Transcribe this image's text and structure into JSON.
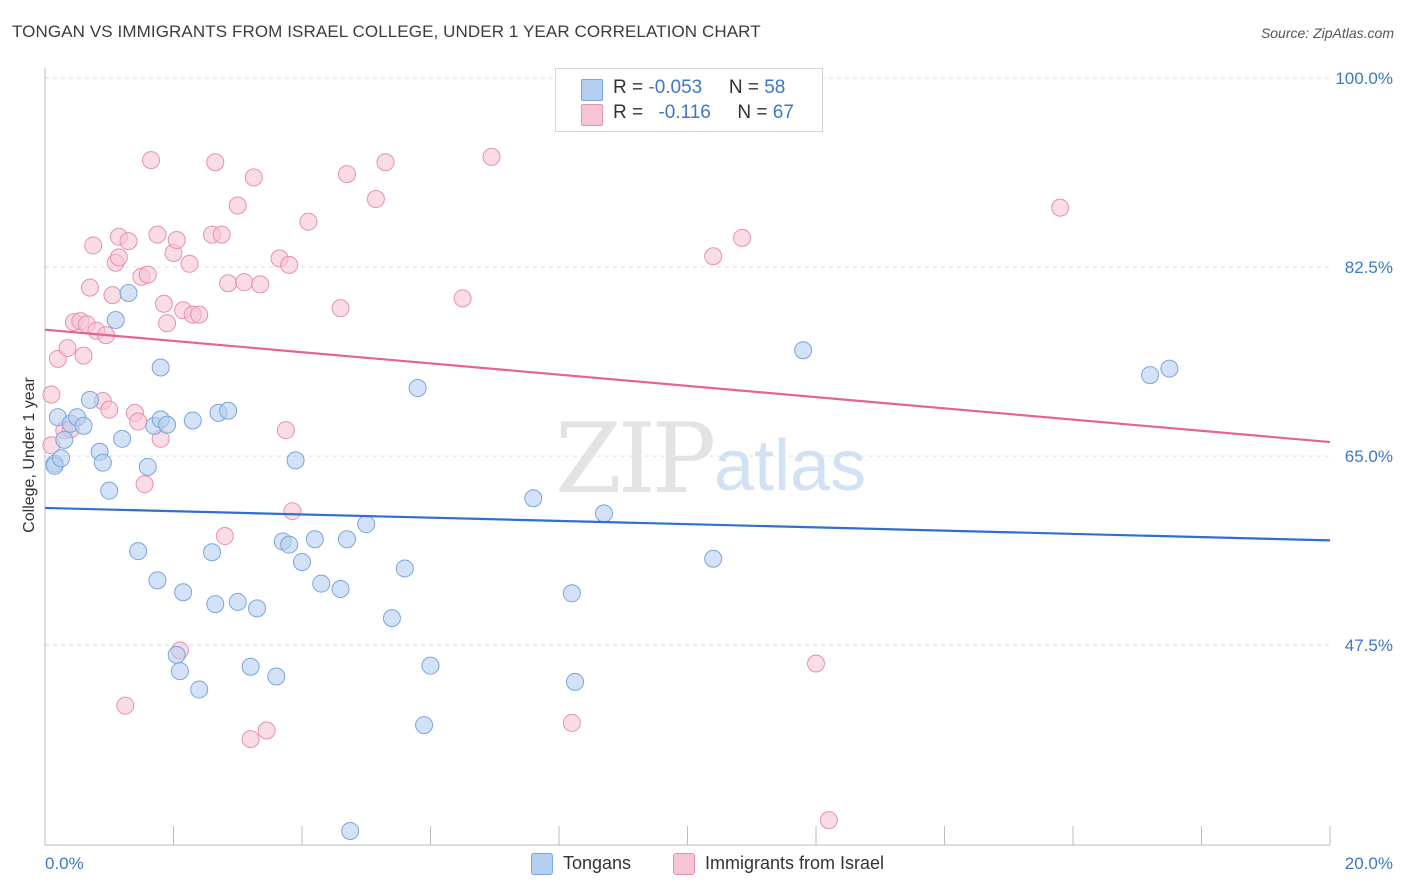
{
  "title": "TONGAN VS IMMIGRANTS FROM ISRAEL COLLEGE, UNDER 1 YEAR CORRELATION CHART",
  "source": "Source: ZipAtlas.com",
  "watermark": {
    "zip": "ZIP",
    "atlas": "atlas"
  },
  "legend_top": {
    "rows": [
      {
        "r_label": "R = ",
        "r_value": "-0.053",
        "n_label": "N = ",
        "n_value": "58"
      },
      {
        "r_label": "R = ",
        "r_value": "-0.116",
        "n_label": "N = ",
        "n_value": "67"
      }
    ]
  },
  "legend_bottom": [
    "Tongans",
    "Immigrants from Israel"
  ],
  "colors": {
    "blue_fill": "#b5cff0",
    "blue_stroke": "#7aa6dd",
    "blue_line": "#2f6fce",
    "pink_fill": "#f7c4d3",
    "pink_stroke": "#ea90ad",
    "pink_line": "#e4648e",
    "tick_text": "#3d78c8",
    "grid": "#d9dde2"
  },
  "chart_data": {
    "type": "scatter",
    "title": "TONGAN VS IMMIGRANTS FROM ISRAEL COLLEGE, UNDER 1 YEAR CORRELATION CHART",
    "ylabel": "College, Under 1 year",
    "xlim": [
      0,
      20
    ],
    "ylim": [
      29,
      100
    ],
    "x_tick_labels": [
      "0.0%",
      "20.0%"
    ],
    "y_ticks": [
      47.5,
      65.0,
      82.5,
      100.0
    ],
    "y_tick_labels": [
      "47.5%",
      "65.0%",
      "82.5%",
      "100.0%"
    ],
    "grid": true,
    "series": [
      {
        "name": "Tongans",
        "r": -0.053,
        "n": 58,
        "trend": {
          "x": [
            0,
            20
          ],
          "y": [
            60.2,
            57.2
          ]
        },
        "points": [
          [
            0.15,
            64.3
          ],
          [
            0.15,
            64.1
          ],
          [
            0.2,
            68.6
          ],
          [
            0.25,
            64.8
          ],
          [
            0.3,
            66.5
          ],
          [
            0.4,
            68.0
          ],
          [
            0.5,
            68.6
          ],
          [
            0.6,
            67.8
          ],
          [
            0.7,
            70.2
          ],
          [
            0.85,
            65.4
          ],
          [
            0.9,
            64.4
          ],
          [
            1.0,
            61.8
          ],
          [
            1.1,
            77.6
          ],
          [
            1.2,
            66.6
          ],
          [
            1.3,
            80.1
          ],
          [
            1.45,
            56.2
          ],
          [
            1.6,
            64.0
          ],
          [
            1.7,
            67.8
          ],
          [
            1.75,
            53.5
          ],
          [
            1.8,
            68.4
          ],
          [
            1.8,
            73.2
          ],
          [
            1.9,
            67.9
          ],
          [
            2.05,
            46.6
          ],
          [
            2.1,
            45.1
          ],
          [
            2.15,
            52.4
          ],
          [
            2.3,
            68.3
          ],
          [
            2.4,
            43.4
          ],
          [
            2.6,
            56.1
          ],
          [
            2.65,
            51.3
          ],
          [
            2.7,
            69.0
          ],
          [
            2.85,
            69.2
          ],
          [
            3.0,
            51.5
          ],
          [
            3.2,
            45.5
          ],
          [
            3.3,
            50.9
          ],
          [
            3.6,
            44.6
          ],
          [
            3.7,
            57.1
          ],
          [
            3.8,
            56.8
          ],
          [
            3.9,
            64.6
          ],
          [
            4.0,
            55.2
          ],
          [
            4.2,
            57.3
          ],
          [
            4.3,
            53.2
          ],
          [
            4.6,
            52.7
          ],
          [
            4.7,
            57.3
          ],
          [
            4.75,
            30.3
          ],
          [
            5.0,
            58.7
          ],
          [
            5.4,
            50.0
          ],
          [
            5.6,
            54.6
          ],
          [
            5.8,
            71.3
          ],
          [
            5.9,
            40.1
          ],
          [
            6.0,
            45.6
          ],
          [
            7.6,
            61.1
          ],
          [
            8.2,
            52.3
          ],
          [
            8.25,
            44.1
          ],
          [
            8.7,
            59.7
          ],
          [
            10.4,
            55.5
          ],
          [
            11.8,
            74.8
          ],
          [
            17.2,
            72.5
          ],
          [
            17.5,
            73.1
          ]
        ]
      },
      {
        "name": "Immigrants from Israel",
        "r": -0.116,
        "n": 67,
        "trend": {
          "x": [
            0,
            20
          ],
          "y": [
            76.7,
            66.3
          ]
        },
        "points": [
          [
            0.1,
            70.7
          ],
          [
            0.1,
            66.0
          ],
          [
            0.2,
            74.0
          ],
          [
            0.3,
            67.4
          ],
          [
            0.35,
            75.0
          ],
          [
            0.4,
            67.5
          ],
          [
            0.45,
            77.4
          ],
          [
            0.55,
            77.5
          ],
          [
            0.6,
            74.3
          ],
          [
            0.65,
            77.2
          ],
          [
            0.7,
            80.6
          ],
          [
            0.75,
            84.5
          ],
          [
            0.8,
            76.6
          ],
          [
            0.9,
            70.1
          ],
          [
            0.95,
            76.2
          ],
          [
            1.0,
            69.3
          ],
          [
            1.05,
            79.9
          ],
          [
            1.1,
            82.9
          ],
          [
            1.15,
            83.4
          ],
          [
            1.15,
            85.3
          ],
          [
            1.25,
            41.9
          ],
          [
            1.3,
            84.9
          ],
          [
            1.4,
            69.0
          ],
          [
            1.45,
            68.2
          ],
          [
            1.5,
            81.6
          ],
          [
            1.55,
            62.4
          ],
          [
            1.6,
            81.8
          ],
          [
            1.65,
            92.4
          ],
          [
            1.75,
            85.5
          ],
          [
            1.8,
            66.6
          ],
          [
            1.85,
            79.1
          ],
          [
            1.9,
            77.3
          ],
          [
            2.0,
            83.8
          ],
          [
            2.05,
            85.0
          ],
          [
            2.1,
            47.0
          ],
          [
            2.15,
            78.5
          ],
          [
            2.25,
            82.8
          ],
          [
            2.3,
            78.1
          ],
          [
            2.4,
            78.1
          ],
          [
            2.6,
            85.5
          ],
          [
            2.65,
            92.2
          ],
          [
            2.75,
            85.5
          ],
          [
            2.8,
            57.6
          ],
          [
            2.85,
            81.0
          ],
          [
            3.0,
            88.2
          ],
          [
            3.1,
            81.1
          ],
          [
            3.2,
            38.8
          ],
          [
            3.25,
            90.8
          ],
          [
            3.35,
            80.9
          ],
          [
            3.45,
            39.6
          ],
          [
            3.65,
            83.3
          ],
          [
            3.75,
            67.4
          ],
          [
            3.8,
            82.7
          ],
          [
            3.85,
            59.9
          ],
          [
            4.1,
            86.7
          ],
          [
            4.6,
            78.7
          ],
          [
            4.7,
            91.1
          ],
          [
            5.15,
            88.8
          ],
          [
            5.3,
            92.2
          ],
          [
            6.5,
            79.6
          ],
          [
            6.95,
            92.7
          ],
          [
            8.2,
            40.3
          ],
          [
            10.4,
            83.5
          ],
          [
            10.85,
            85.2
          ],
          [
            12.0,
            45.8
          ],
          [
            12.2,
            31.3
          ],
          [
            15.8,
            88.0
          ]
        ]
      }
    ]
  }
}
